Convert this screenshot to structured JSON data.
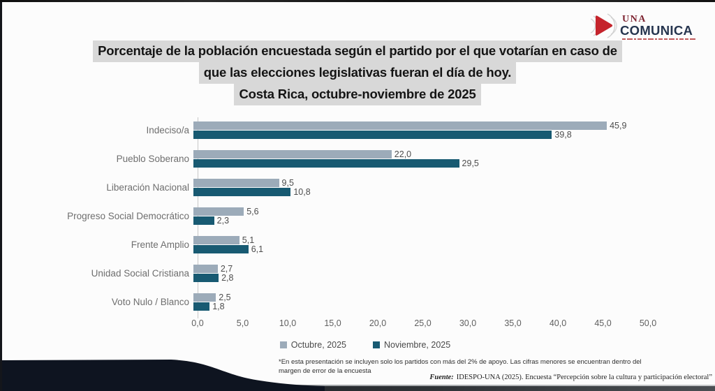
{
  "logo": {
    "una": "UNA",
    "comunica": "COMUNICA",
    "colors": {
      "triangle": "#c5242c",
      "una": "#7d2330",
      "comunica": "#26354f",
      "arcs": "#c9c9c9"
    }
  },
  "title": {
    "lines": [
      "Porcentaje de la población encuestada según el partido por el que votarían en caso de",
      "que las elecciones legislativas fueran el día de hoy.",
      "Costa Rica, octubre-noviembre de 2025"
    ],
    "highlight_color": "#d8d8d8"
  },
  "chart_data": {
    "type": "bar",
    "orientation": "horizontal",
    "title": "Porcentaje de la población encuestada según el partido por el que votarían en caso de que las elecciones legislativas fueran el día de hoy. Costa Rica, octubre-noviembre de 2025",
    "categories": [
      "Indeciso/a",
      "Pueblo Soberano",
      "Liberación Nacional",
      "Progreso Social Democrático",
      "Frente Amplio",
      "Unidad Social Cristiana",
      "Voto Nulo / Blanco"
    ],
    "series": [
      {
        "name": "Octubre, 2025",
        "color": "#9cabb9",
        "values": [
          45.9,
          22.0,
          9.5,
          5.6,
          5.1,
          2.7,
          2.5
        ],
        "labels": [
          "45,9",
          "22,0",
          "9,5",
          "5,6",
          "5,1",
          "2,7",
          "2,5"
        ]
      },
      {
        "name": "Noviembre, 2025",
        "color": "#185a72",
        "values": [
          39.8,
          29.5,
          10.8,
          2.3,
          6.1,
          2.8,
          1.8
        ],
        "labels": [
          "39,8",
          "29,5",
          "10,8",
          "2,3",
          "6,1",
          "2,8",
          "1,8"
        ]
      }
    ],
    "xlim": [
      0,
      50
    ],
    "x_ticks": [
      "0,0",
      "5,0",
      "10,0",
      "15,0",
      "20,0",
      "25,0",
      "30,0",
      "35,0",
      "40,0",
      "45,0",
      "50,0"
    ],
    "grid": false,
    "legend_position": "bottom"
  },
  "footnote": "*En esta presentación se incluyen solo los partidos con más del 2% de apoyo. Las cifras menores se encuentran dentro del margen de error de la encuesta",
  "source": {
    "label": "Fuente:",
    "text": "IDESPO-UNA (2025). Encuesta “Percepción sobre la cultura y participación electoral”"
  }
}
